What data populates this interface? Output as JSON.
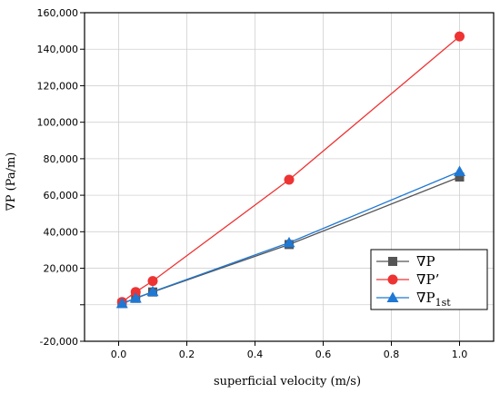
{
  "chart_data": {
    "type": "line",
    "xlabel": "superficial velocity (m/s)",
    "ylabel": "∇P  (Pa/m)",
    "xlim": [
      -0.1,
      1.1
    ],
    "ylim": [
      -20000,
      160000
    ],
    "x_ticks": [
      0.0,
      0.2,
      0.4,
      0.6,
      0.8,
      1.0
    ],
    "x_tick_labels": [
      "0.0",
      "0.2",
      "0.4",
      "0.6",
      "0.8",
      "1.0"
    ],
    "y_ticks": [
      -20000,
      20000,
      40000,
      60000,
      80000,
      100000,
      120000,
      140000,
      160000
    ],
    "y_tick_labels": [
      "-20,000",
      "20,000",
      "40,000",
      "60,000",
      "80,000",
      "100,000",
      "120,000",
      "140,000",
      "160,000"
    ],
    "grid": true,
    "legend_position": "bottom-right",
    "series": [
      {
        "name": "∇P",
        "color": "#555555",
        "marker": "square",
        "x": [
          0.01,
          0.05,
          0.1,
          0.5,
          1.0
        ],
        "y": [
          700,
          3500,
          7000,
          33000,
          70000
        ]
      },
      {
        "name": "∇P’",
        "color": "#ee3333",
        "marker": "circle",
        "x": [
          0.01,
          0.05,
          0.1,
          0.5,
          1.0
        ],
        "y": [
          1500,
          7000,
          13000,
          68500,
          147000
        ]
      },
      {
        "name": "∇P",
        "name_sub": "1st",
        "color": "#1f78d4",
        "marker": "triangle",
        "x": [
          0.01,
          0.05,
          0.1,
          0.5,
          1.0
        ],
        "y": [
          700,
          3600,
          7200,
          34000,
          73000
        ]
      }
    ]
  }
}
